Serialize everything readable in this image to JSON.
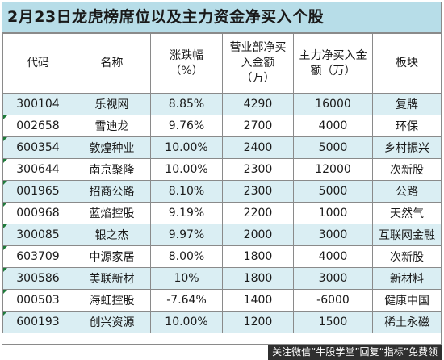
{
  "title": "2月23日龙虎榜席位以及主力资金净买入个股",
  "headers": [
    [
      "代码"
    ],
    [
      "名称"
    ],
    [
      "涨跌幅",
      "（%）"
    ],
    [
      "营业部净买",
      "入金额",
      "（万）"
    ],
    [
      "主力净买入金",
      "额（万）"
    ],
    [
      "板块"
    ]
  ],
  "rows": [
    {
      "code": "300104",
      "name": "乐视网",
      "change": "8.85%",
      "dept_net_buy": "4290",
      "main_net_buy": "16000",
      "sector": "复牌"
    },
    {
      "code": "002658",
      "name": "雪迪龙",
      "change": "9.76%",
      "dept_net_buy": "2700",
      "main_net_buy": "4000",
      "sector": "环保"
    },
    {
      "code": "600354",
      "name": "敦煌种业",
      "change": "10.00%",
      "dept_net_buy": "2400",
      "main_net_buy": "5000",
      "sector": "乡村振兴"
    },
    {
      "code": "300644",
      "name": "南京聚隆",
      "change": "10.00%",
      "dept_net_buy": "2300",
      "main_net_buy": "12000",
      "sector": "次新股"
    },
    {
      "code": "001965",
      "name": "招商公路",
      "change": "8.10%",
      "dept_net_buy": "2300",
      "main_net_buy": "5000",
      "sector": "公路"
    },
    {
      "code": "000968",
      "name": "蓝焰控股",
      "change": "9.19%",
      "dept_net_buy": "2200",
      "main_net_buy": "1000",
      "sector": "天然气"
    },
    {
      "code": "300085",
      "name": "银之杰",
      "change": "9.97%",
      "dept_net_buy": "2000",
      "main_net_buy": "3000",
      "sector": "互联网金融"
    },
    {
      "code": "603709",
      "name": "中源家居",
      "change": "8.00%",
      "dept_net_buy": "1800",
      "main_net_buy": "4000",
      "sector": "次新股"
    },
    {
      "code": "300586",
      "name": "美联新材",
      "change": "10%",
      "dept_net_buy": "1800",
      "main_net_buy": "3000",
      "sector": "新材料"
    },
    {
      "code": "000503",
      "name": "海虹控股",
      "change": "-7.64%",
      "dept_net_buy": "1400",
      "main_net_buy": "-6000",
      "sector": "健康中国"
    },
    {
      "code": "600193",
      "name": "创兴资源",
      "change": "10.00%",
      "dept_net_buy": "1200",
      "main_net_buy": "1500",
      "sector": "稀土永磁"
    }
  ],
  "footer": "关注微信“牛股学堂”回复“指标”免费领",
  "colors": {
    "title_bg": "#b7dde8",
    "band": "#daeef3",
    "grid": "#8a8a8a",
    "marker": "#1e7b3a"
  }
}
